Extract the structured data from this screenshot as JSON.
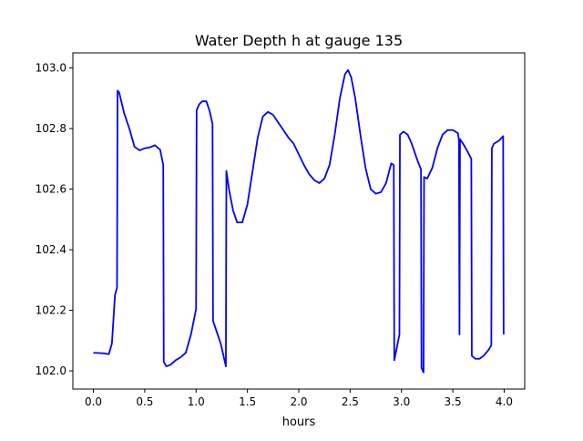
{
  "chart_data": {
    "type": "line",
    "title": "Water Depth h at gauge 135",
    "xlabel": "hours",
    "ylabel": "",
    "xlim": [
      -0.2,
      4.2
    ],
    "ylim": [
      101.94,
      103.05
    ],
    "x_ticks": [
      0.0,
      0.5,
      1.0,
      1.5,
      2.0,
      2.5,
      3.0,
      3.5,
      4.0
    ],
    "x_tick_labels": [
      "0.0",
      "0.5",
      "1.0",
      "1.5",
      "2.0",
      "2.5",
      "3.0",
      "3.5",
      "4.0"
    ],
    "y_ticks": [
      102.0,
      102.2,
      102.4,
      102.6,
      102.8,
      103.0
    ],
    "y_tick_labels": [
      "102.0",
      "102.2",
      "102.4",
      "102.6",
      "102.8",
      "103.0"
    ],
    "grid": false,
    "legend": null,
    "series": [
      {
        "color": "#0000ff",
        "x": [
          0.0,
          0.1,
          0.15,
          0.18,
          0.21,
          0.23,
          0.235,
          0.25,
          0.3,
          0.35,
          0.4,
          0.45,
          0.5,
          0.55,
          0.6,
          0.65,
          0.68,
          0.685,
          0.71,
          0.75,
          0.8,
          0.85,
          0.9,
          0.95,
          1.0,
          1.005,
          1.03,
          1.06,
          1.1,
          1.13,
          1.16,
          1.165,
          1.2,
          1.24,
          1.28,
          1.29,
          1.295,
          1.32,
          1.36,
          1.4,
          1.45,
          1.5,
          1.55,
          1.6,
          1.65,
          1.7,
          1.75,
          1.8,
          1.85,
          1.9,
          1.95,
          2.0,
          2.05,
          2.1,
          2.15,
          2.2,
          2.25,
          2.3,
          2.35,
          2.4,
          2.45,
          2.48,
          2.51,
          2.55,
          2.6,
          2.65,
          2.7,
          2.75,
          2.8,
          2.85,
          2.9,
          2.925,
          2.93,
          2.98,
          2.985,
          3.02,
          3.06,
          3.1,
          3.15,
          3.19,
          3.195,
          3.215,
          3.22,
          3.25,
          3.3,
          3.35,
          3.4,
          3.45,
          3.5,
          3.55,
          3.56,
          3.565,
          3.57,
          3.6,
          3.65,
          3.68,
          3.685,
          3.72,
          3.76,
          3.8,
          3.85,
          3.875,
          3.88,
          3.9,
          3.95,
          3.99,
          3.995
        ],
        "values": [
          102.06,
          102.058,
          102.055,
          102.09,
          102.25,
          102.275,
          102.925,
          102.92,
          102.85,
          102.8,
          102.74,
          102.728,
          102.735,
          102.738,
          102.745,
          102.73,
          102.68,
          102.03,
          102.015,
          102.02,
          102.035,
          102.045,
          102.06,
          102.12,
          102.205,
          102.86,
          102.88,
          102.89,
          102.89,
          102.86,
          102.815,
          102.165,
          102.13,
          102.09,
          102.03,
          102.015,
          102.66,
          102.6,
          102.53,
          102.49,
          102.49,
          102.55,
          102.66,
          102.77,
          102.84,
          102.855,
          102.845,
          102.82,
          102.795,
          102.77,
          102.75,
          102.715,
          102.68,
          102.65,
          102.63,
          102.62,
          102.635,
          102.68,
          102.78,
          102.9,
          102.98,
          102.993,
          102.97,
          102.9,
          102.78,
          102.67,
          102.6,
          102.585,
          102.59,
          102.62,
          102.685,
          102.68,
          102.035,
          102.12,
          102.78,
          102.79,
          102.78,
          102.75,
          102.7,
          102.665,
          102.01,
          101.995,
          102.64,
          102.635,
          102.67,
          102.735,
          102.78,
          102.795,
          102.795,
          102.785,
          102.76,
          102.12,
          102.765,
          102.75,
          102.72,
          102.7,
          102.05,
          102.04,
          102.04,
          102.05,
          102.07,
          102.085,
          102.735,
          102.75,
          102.76,
          102.775,
          102.12
        ]
      }
    ]
  }
}
